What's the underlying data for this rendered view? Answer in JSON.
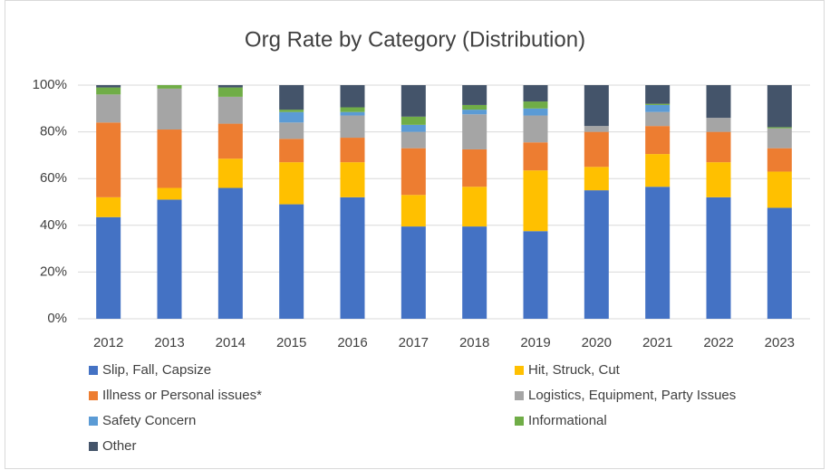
{
  "chart_data": {
    "type": "stacked_bar",
    "title": "Org Rate by Category (Distribution)",
    "categories": [
      "2012",
      "2013",
      "2014",
      "2015",
      "2016",
      "2017",
      "2018",
      "2019",
      "2020",
      "2021",
      "2022",
      "2023"
    ],
    "series": [
      {
        "name": "Slip, Fall, Capsize",
        "color": "#4472c4",
        "values": [
          43.5,
          51,
          56,
          49,
          52,
          39.5,
          39.5,
          37.5,
          55,
          56.5,
          52,
          47.5
        ]
      },
      {
        "name": "Hit, Struck, Cut",
        "color": "#ffc000",
        "values": [
          8.5,
          5,
          12.5,
          18,
          15,
          13.5,
          17,
          26,
          10,
          14,
          15,
          15.5
        ]
      },
      {
        "name": "Illness or Personal issues*",
        "color": "#ed7d31",
        "values": [
          32,
          25,
          15,
          10,
          10.5,
          20,
          16,
          12,
          15,
          12,
          13,
          10
        ]
      },
      {
        "name": "Logistics, Equipment, Party Issues",
        "color": "#a5a5a5",
        "values": [
          12,
          17.5,
          11.5,
          7,
          9.5,
          7,
          15,
          11.5,
          2.5,
          6,
          6,
          8.5
        ]
      },
      {
        "name": "Safety Concern",
        "color": "#5b9bd5",
        "values": [
          0,
          0,
          0,
          4.5,
          1.5,
          3,
          2,
          3,
          0,
          3,
          0,
          0
        ]
      },
      {
        "name": "Informational",
        "color": "#70ad47",
        "values": [
          3,
          1.5,
          4,
          1,
          2,
          3.5,
          2,
          3,
          0,
          0.5,
          0,
          0.5
        ]
      },
      {
        "name": "Other",
        "color": "#44546a",
        "values": [
          1,
          0,
          1,
          10.5,
          9.5,
          13.5,
          8.5,
          7,
          17.5,
          8,
          14,
          18
        ]
      }
    ],
    "ylim": [
      0,
      100
    ],
    "yticks": [
      {
        "value": 0,
        "label": "0%"
      },
      {
        "value": 20,
        "label": "20%"
      },
      {
        "value": 40,
        "label": "40%"
      },
      {
        "value": 60,
        "label": "60%"
      },
      {
        "value": 80,
        "label": "80%"
      },
      {
        "value": 100,
        "label": "100%"
      }
    ],
    "grid": true
  }
}
